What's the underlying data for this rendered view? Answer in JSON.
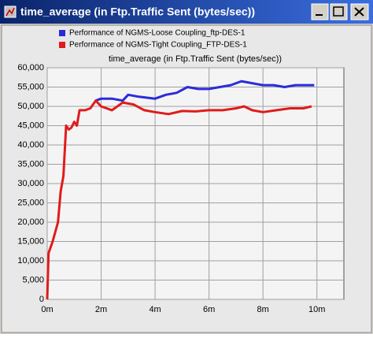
{
  "window": {
    "title": "time_average (in Ftp.Traffic Sent (bytes/sec))"
  },
  "chart_data": {
    "type": "line",
    "title": "time_average (in Ftp.Traffic Sent (bytes/sec))",
    "series": [
      {
        "name": "Performance of NGMS-Loose Coupling_ftp-DES-1",
        "color": "#2b2bdc",
        "x": [
          1.8,
          2.0,
          2.4,
          2.8,
          3.0,
          3.4,
          4.0,
          4.4,
          4.8,
          5.2,
          5.6,
          6.0,
          6.4,
          6.8,
          7.2,
          7.6,
          8.0,
          8.4,
          8.8,
          9.2,
          9.6,
          9.9
        ],
        "values": [
          51500,
          52000,
          52000,
          51500,
          53000,
          52500,
          52000,
          53000,
          53500,
          55000,
          54500,
          54500,
          55000,
          55500,
          56500,
          56000,
          55500,
          55500,
          55000,
          55500,
          55500,
          55500
        ]
      },
      {
        "name": "Performance of NGMS-Tight Coupling_FTP-DES-1",
        "color": "#e01b1b",
        "x": [
          0,
          0.05,
          0.2,
          0.4,
          0.5,
          0.6,
          0.7,
          0.8,
          0.9,
          1.0,
          1.1,
          1.2,
          1.4,
          1.6,
          1.8,
          2.0,
          2.4,
          2.8,
          3.2,
          3.6,
          4.0,
          4.5,
          5.0,
          5.5,
          6.0,
          6.5,
          7.0,
          7.3,
          7.6,
          8.0,
          8.5,
          9.0,
          9.5,
          9.8
        ],
        "values": [
          0,
          12000,
          15000,
          20000,
          28000,
          32000,
          45000,
          44000,
          44500,
          46000,
          45000,
          49000,
          49000,
          49500,
          51500,
          50000,
          49000,
          51000,
          50500,
          49000,
          48500,
          48000,
          48800,
          48700,
          49000,
          49000,
          49500,
          50000,
          49000,
          48500,
          49000,
          49500,
          49500,
          50000
        ]
      }
    ],
    "xlim": [
      0,
      11
    ],
    "xticks": [
      {
        "value": 0,
        "label": "0m"
      },
      {
        "value": 2,
        "label": "2m"
      },
      {
        "value": 4,
        "label": "4m"
      },
      {
        "value": 6,
        "label": "6m"
      },
      {
        "value": 8,
        "label": "8m"
      },
      {
        "value": 10,
        "label": "10m"
      }
    ],
    "ylim": [
      0,
      60000
    ],
    "yticks": [
      0,
      {
        "value": 5000,
        "label": "5,000"
      },
      {
        "value": 10000,
        "label": "10,000"
      },
      {
        "value": 15000,
        "label": "15,000"
      },
      {
        "value": 20000,
        "label": "20,000"
      },
      {
        "value": 25000,
        "label": "25,000"
      },
      {
        "value": 30000,
        "label": "30,000"
      },
      {
        "value": 35000,
        "label": "35,000"
      },
      {
        "value": 40000,
        "label": "40,000"
      },
      {
        "value": 45000,
        "label": "45,000"
      },
      {
        "value": 50000,
        "label": "50,000"
      },
      {
        "value": 55000,
        "label": "55,000"
      },
      {
        "value": 60000,
        "label": "60,000"
      }
    ],
    "grid": true
  }
}
